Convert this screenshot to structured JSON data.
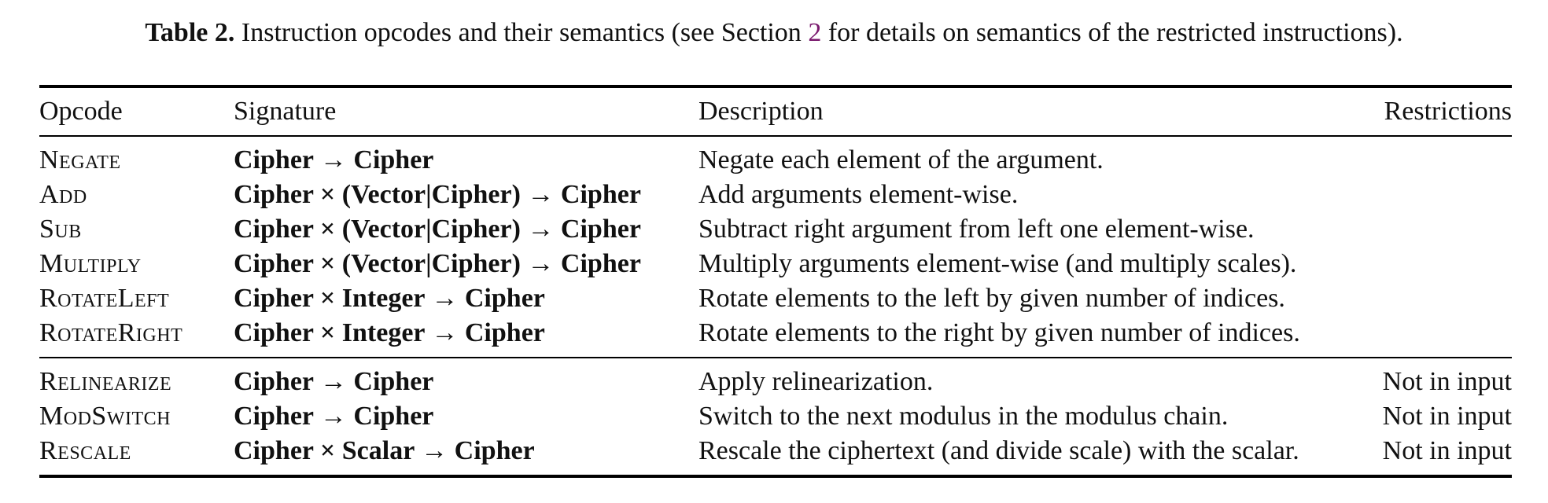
{
  "caption": {
    "label": "Table 2.",
    "text_before": "Instruction opcodes and their semantics (see Section",
    "section_ref": "2",
    "text_after": "for details on semantics of the restricted instructions)."
  },
  "table": {
    "headers": {
      "opcode": "Opcode",
      "signature": "Signature",
      "description": "Description",
      "restrictions": "Restrictions"
    },
    "group1": [
      {
        "opcode": "Negate",
        "signature": "Cipher → Cipher",
        "description": "Negate each element of the argument.",
        "restrictions": ""
      },
      {
        "opcode": "Add",
        "signature": "Cipher × (Vector|Cipher) → Cipher",
        "description": "Add arguments element-wise.",
        "restrictions": ""
      },
      {
        "opcode": "Sub",
        "signature": "Cipher × (Vector|Cipher) → Cipher",
        "description": "Subtract right argument from left one element-wise.",
        "restrictions": ""
      },
      {
        "opcode": "Multiply",
        "signature": "Cipher × (Vector|Cipher) → Cipher",
        "description": "Multiply arguments element-wise (and multiply scales).",
        "restrictions": ""
      },
      {
        "opcode": "RotateLeft",
        "signature": "Cipher × Integer → Cipher",
        "description": "Rotate elements to the left by given number of indices.",
        "restrictions": ""
      },
      {
        "opcode": "RotateRight",
        "signature": "Cipher × Integer → Cipher",
        "description": "Rotate elements to the right by given number of indices.",
        "restrictions": ""
      }
    ],
    "group2": [
      {
        "opcode": "Relinearize",
        "signature": "Cipher → Cipher",
        "description": "Apply relinearization.",
        "restrictions": "Not in input"
      },
      {
        "opcode": "ModSwitch",
        "signature": "Cipher → Cipher",
        "description": "Switch to the next modulus in the modulus chain.",
        "restrictions": "Not in input"
      },
      {
        "opcode": "Rescale",
        "signature": "Cipher × Scalar → Cipher",
        "description": "Rescale the ciphertext (and divide scale) with the scalar.",
        "restrictions": "Not in input"
      }
    ]
  }
}
